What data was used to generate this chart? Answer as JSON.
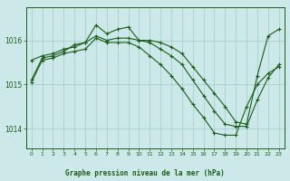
{
  "xlabel": "Graphe pression niveau de la mer (hPa)",
  "bg_color": "#cce8e8",
  "grid_color": "#a8d0d0",
  "line_color": "#1a5c1a",
  "label_color": "#1a5c1a",
  "x_ticks": [
    0,
    1,
    2,
    3,
    4,
    5,
    6,
    7,
    8,
    9,
    10,
    11,
    12,
    13,
    14,
    15,
    16,
    17,
    18,
    19,
    20,
    21,
    22,
    23
  ],
  "y_ticks": [
    1014,
    1015,
    1016
  ],
  "ylim": [
    1013.55,
    1016.75
  ],
  "xlim": [
    -0.5,
    23.5
  ],
  "series": [
    {
      "x": [
        0,
        1,
        2,
        3,
        4,
        5,
        6,
        7,
        8,
        9,
        10,
        11,
        12,
        13,
        14,
        15,
        16,
        17,
        18,
        19,
        20,
        21,
        22,
        23
      ],
      "y": [
        1015.55,
        1015.65,
        1015.7,
        1015.8,
        1015.85,
        1015.95,
        1016.1,
        1016.0,
        1016.05,
        1016.05,
        1016.0,
        1016.0,
        1015.95,
        1015.85,
        1015.7,
        1015.4,
        1015.1,
        1014.8,
        1014.5,
        1014.15,
        1014.1,
        1015.2,
        1016.1,
        1016.25
      ]
    },
    {
      "x": [
        0,
        1,
        2,
        3,
        4,
        5,
        6,
        7,
        8,
        9,
        10,
        11,
        12,
        13,
        14,
        15,
        16,
        17,
        18,
        19,
        20,
        21,
        22,
        23
      ],
      "y": [
        1015.1,
        1015.6,
        1015.65,
        1015.75,
        1015.9,
        1015.95,
        1016.35,
        1016.15,
        1016.25,
        1016.3,
        1016.0,
        1015.95,
        1015.8,
        1015.65,
        1015.45,
        1015.1,
        1014.75,
        1014.4,
        1014.1,
        1014.05,
        1014.05,
        1014.65,
        1015.15,
        1015.45
      ]
    },
    {
      "x": [
        0,
        1,
        2,
        3,
        4,
        5,
        6,
        7,
        8,
        9,
        10,
        11,
        12,
        13,
        14,
        15,
        16,
        17,
        18,
        19,
        20,
        21,
        22,
        23
      ],
      "y": [
        1015.05,
        1015.55,
        1015.6,
        1015.7,
        1015.75,
        1015.8,
        1016.05,
        1015.95,
        1015.95,
        1015.95,
        1015.85,
        1015.65,
        1015.45,
        1015.2,
        1014.9,
        1014.55,
        1014.25,
        1013.9,
        1013.85,
        1013.85,
        1014.5,
        1015.0,
        1015.25,
        1015.4
      ]
    }
  ]
}
